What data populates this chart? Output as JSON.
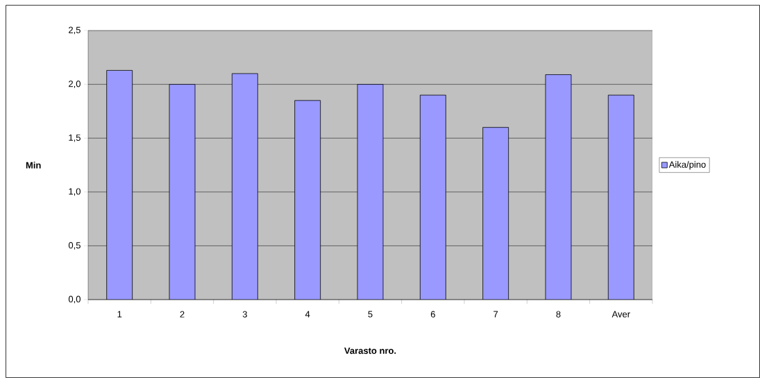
{
  "chart_data": {
    "type": "bar",
    "xlabel": "Varasto nro.",
    "ylabel": "Min",
    "categories": [
      "1",
      "2",
      "3",
      "4",
      "5",
      "6",
      "7",
      "8",
      "Aver"
    ],
    "series": [
      {
        "name": "Aika/pino",
        "color": "#9999ff",
        "values": [
          2.13,
          2.0,
          2.1,
          1.85,
          2.0,
          1.9,
          1.6,
          2.09,
          1.9
        ]
      }
    ],
    "ylim": [
      0,
      2.5
    ],
    "yticks": [
      {
        "value": 0,
        "label": "0,0"
      },
      {
        "value": 0.5,
        "label": "0,5"
      },
      {
        "value": 1,
        "label": "1,0"
      },
      {
        "value": 1.5,
        "label": "1,5"
      },
      {
        "value": 2,
        "label": "2,0"
      },
      {
        "value": 2.5,
        "label": "2,5"
      }
    ],
    "grid": "y",
    "legend": "right"
  }
}
